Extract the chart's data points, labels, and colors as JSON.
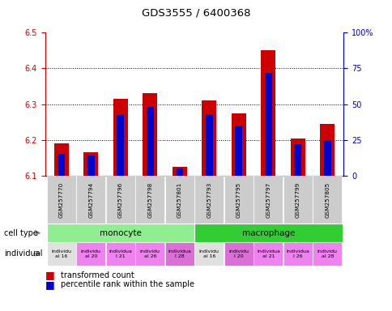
{
  "title": "GDS3555 / 6400368",
  "samples": [
    "GSM257770",
    "GSM257794",
    "GSM257796",
    "GSM257798",
    "GSM257801",
    "GSM257793",
    "GSM257795",
    "GSM257797",
    "GSM257799",
    "GSM257805"
  ],
  "red_values": [
    6.19,
    6.165,
    6.315,
    6.33,
    6.125,
    6.31,
    6.275,
    6.45,
    6.205,
    6.245
  ],
  "blue_values": [
    15,
    14,
    43,
    48,
    5,
    43,
    35,
    72,
    22,
    25
  ],
  "baseline": 6.1,
  "ylim_left": [
    6.1,
    6.5
  ],
  "ylim_right": [
    0,
    100
  ],
  "yticks_left": [
    6.1,
    6.2,
    6.3,
    6.4,
    6.5
  ],
  "yticks_right": [
    0,
    25,
    50,
    75,
    100
  ],
  "ytick_labels_right": [
    "0",
    "25",
    "50",
    "75",
    "100%"
  ],
  "cell_type_groups": [
    {
      "label": "monocyte",
      "start": 0,
      "end": 4,
      "color": "#90EE90"
    },
    {
      "label": "macrophage",
      "start": 5,
      "end": 9,
      "color": "#00CC44"
    }
  ],
  "individual_colors": [
    "#E0E0E0",
    "#EE82EE",
    "#EE82EE",
    "#EE82EE",
    "#DA70D6",
    "#E0E0E0",
    "#DA70D6",
    "#EE82EE",
    "#EE82EE",
    "#EE82EE"
  ],
  "individual_texts": [
    "individu\nal 16",
    "individu\nal 20",
    "individua\nl 21",
    "individu\nal 26",
    "individua\nl 28",
    "individu\nal 16",
    "individu\nl 20",
    "individua\nal 21",
    "individua\nl 26",
    "individu\nal 28"
  ],
  "bar_width": 0.5,
  "blue_bar_width": 0.25,
  "red_color": "#CC0000",
  "blue_color": "#0000CC",
  "legend_red": "transformed count",
  "legend_blue": "percentile rank within the sample",
  "left_tick_color": "#CC0000",
  "right_tick_color": "#0000BB",
  "grid_yticks": [
    6.2,
    6.3,
    6.4
  ],
  "tick_label_size": 7,
  "monocyte_color": "#90EE90",
  "macrophage_color": "#32CD32"
}
